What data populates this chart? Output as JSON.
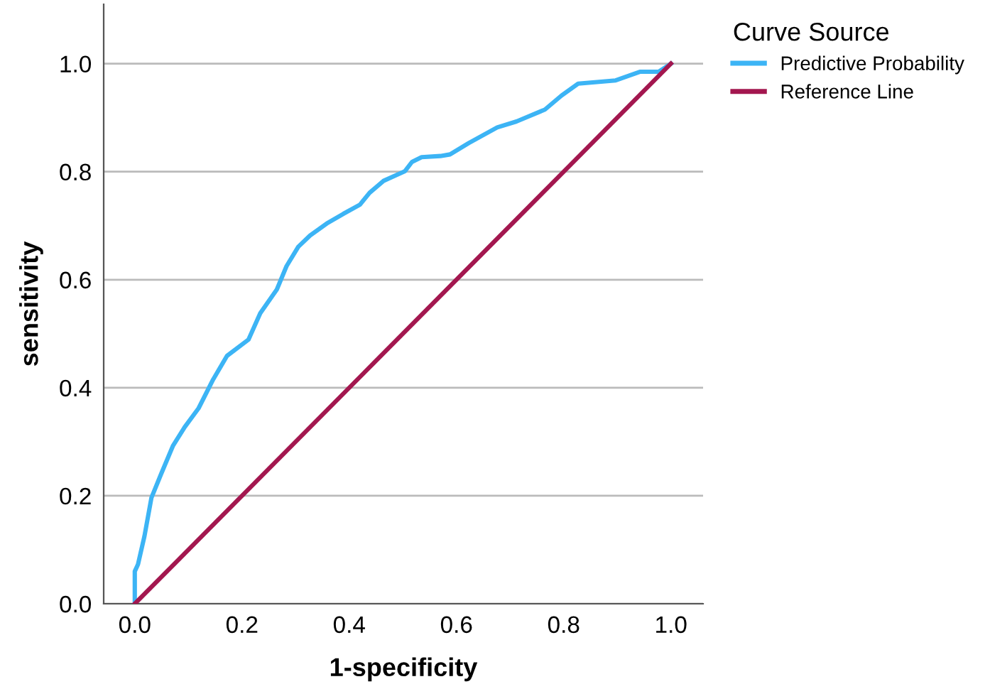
{
  "chart_data": {
    "type": "line",
    "xlabel": "1-specificity",
    "ylabel": "sensitivity",
    "legend_title": "Curve Source",
    "legend": "top right",
    "grid": "y",
    "line_style": "solid",
    "marker": "none",
    "xlim": [
      -0.058,
      1.06
    ],
    "ylim": [
      0,
      1.11
    ],
    "xticks": [
      {
        "value": 0,
        "label": "0.0"
      },
      {
        "value": 0.2,
        "label": "0.2"
      },
      {
        "value": 0.4,
        "label": "0.4"
      },
      {
        "value": 0.6,
        "label": "0.6"
      },
      {
        "value": 0.8,
        "label": "0.8"
      },
      {
        "value": 1,
        "label": "1.0"
      }
    ],
    "yticks": [
      {
        "value": 0,
        "label": "0.0"
      },
      {
        "value": 0.2,
        "label": "0.2"
      },
      {
        "value": 0.4,
        "label": "0.4"
      },
      {
        "value": 0.6,
        "label": "0.6"
      },
      {
        "value": 0.8,
        "label": "0.8"
      },
      {
        "value": 1,
        "label": "1.0"
      }
    ],
    "series": [
      {
        "name": "Predictive Probability",
        "color": "#3cb4f5",
        "x": [
          0,
          0,
          0.006,
          0.018,
          0.031,
          0.049,
          0.071,
          0.093,
          0.119,
          0.146,
          0.172,
          0.212,
          0.234,
          0.265,
          0.283,
          0.305,
          0.327,
          0.358,
          0.389,
          0.42,
          0.438,
          0.464,
          0.504,
          0.517,
          0.535,
          0.57,
          0.588,
          0.623,
          0.676,
          0.712,
          0.765,
          0.796,
          0.827,
          0.897,
          0.942,
          0.977,
          1.0
        ],
        "values": [
          0,
          0.06,
          0.073,
          0.125,
          0.196,
          0.24,
          0.292,
          0.327,
          0.362,
          0.415,
          0.459,
          0.489,
          0.538,
          0.582,
          0.625,
          0.661,
          0.682,
          0.704,
          0.722,
          0.739,
          0.761,
          0.783,
          0.801,
          0.818,
          0.827,
          0.829,
          0.832,
          0.853,
          0.882,
          0.893,
          0.915,
          0.941,
          0.963,
          0.969,
          0.985,
          0.985,
          1.0
        ]
      },
      {
        "name": "Reference Line",
        "color": "#a3174f",
        "x": [
          0,
          1
        ],
        "values": [
          0,
          1
        ]
      }
    ]
  }
}
